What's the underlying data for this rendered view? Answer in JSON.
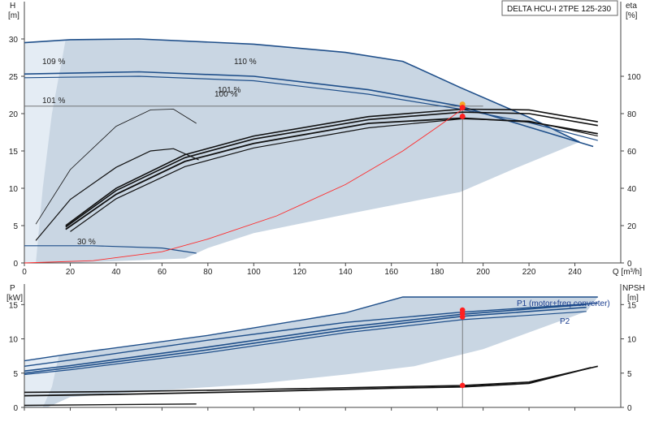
{
  "title": "DELTA HCU-I 2TPE 125-230",
  "colors": {
    "envelope": "#c9d6e3",
    "envelope_light": "#e4ecf4",
    "curve_dark": "#1f4f8a",
    "curve_black": "#111111",
    "eta": "#ff2a2a",
    "point": "#ff2020",
    "point_orange": "#f5a623",
    "grid": "#cfd8e0",
    "axis": "#444444"
  },
  "chart_data": [
    {
      "type": "line",
      "name_id": "top",
      "x_axis": {
        "label": "Q [m³/h]",
        "range": [
          0,
          260
        ],
        "ticks": [
          0,
          20,
          40,
          60,
          80,
          100,
          120,
          140,
          160,
          180,
          200,
          220,
          240
        ]
      },
      "y_axis": {
        "label": "H",
        "unit": "[m]",
        "range": [
          0,
          35
        ],
        "ticks": [
          0,
          5,
          10,
          15,
          20,
          25,
          30
        ]
      },
      "y2_axis": {
        "label": "eta",
        "unit": "[%]",
        "range": [
          0,
          140
        ],
        "ticks": [
          0,
          20,
          40,
          60,
          80,
          100
        ]
      },
      "annotations": [
        "109 %",
        "110 %",
        "101 %",
        "101 %",
        "100 %",
        "30 %"
      ],
      "operating_point": {
        "x": 191,
        "y": 20.8,
        "eta": 78.5
      },
      "hline_y": 21,
      "series": [
        {
          "role": "curve_top",
          "points": [
            [
              0,
              29.5
            ],
            [
              20,
              29.9
            ],
            [
              50,
              30.0
            ],
            [
              100,
              29.3
            ],
            [
              140,
              28.2
            ],
            [
              165,
              27.0
            ],
            [
              190,
              23.5
            ],
            [
              220,
              19.5
            ],
            [
              242,
              16.2
            ]
          ]
        },
        {
          "role": "curve_101a",
          "points": [
            [
              0,
              25.3
            ],
            [
              50,
              25.6
            ],
            [
              100,
              25.0
            ],
            [
              150,
              23.2
            ],
            [
              190,
              21.0
            ],
            [
              220,
              18.2
            ],
            [
              248,
              15.6
            ]
          ]
        },
        {
          "role": "curve_101b",
          "points": [
            [
              0,
              24.8
            ],
            [
              50,
              25.0
            ],
            [
              100,
              24.4
            ],
            [
              150,
              22.6
            ],
            [
              190,
              20.6
            ],
            [
              220,
              18.8
            ],
            [
              250,
              16.4
            ]
          ]
        },
        {
          "role": "curve_30",
          "points": [
            [
              0,
              2.3
            ],
            [
              30,
              2.3
            ],
            [
              60,
              2.0
            ],
            [
              75,
              1.3
            ]
          ]
        },
        {
          "role": "eta_thin",
          "points": [
            [
              5,
              5.2
            ],
            [
              20,
              12.5
            ],
            [
              40,
              18.3
            ],
            [
              55,
              20.5
            ],
            [
              65,
              20.6
            ],
            [
              75,
              18.7
            ]
          ]
        },
        {
          "role": "eta_a",
          "points": [
            [
              5,
              3.0
            ],
            [
              20,
              8.5
            ],
            [
              40,
              12.8
            ],
            [
              55,
              15.0
            ],
            [
              65,
              15.3
            ],
            [
              76,
              13.8
            ]
          ]
        },
        {
          "role": "eta_b1",
          "points": [
            [
              18,
              5.0
            ],
            [
              40,
              10.0
            ],
            [
              70,
              14.5
            ],
            [
              100,
              17.0
            ],
            [
              150,
              19.6
            ],
            [
              191,
              20.6
            ],
            [
              220,
              20.5
            ],
            [
              250,
              18.9
            ]
          ]
        },
        {
          "role": "eta_b2",
          "points": [
            [
              18,
              4.8
            ],
            [
              40,
              9.7
            ],
            [
              70,
              14.1
            ],
            [
              100,
              16.6
            ],
            [
              150,
              19.2
            ],
            [
              191,
              20.2
            ],
            [
              220,
              20.0
            ],
            [
              250,
              18.4
            ]
          ]
        },
        {
          "role": "eta_b3",
          "points": [
            [
              18,
              4.5
            ],
            [
              40,
              9.2
            ],
            [
              70,
              13.6
            ],
            [
              100,
              16.0
            ],
            [
              150,
              18.7
            ],
            [
              191,
              19.4
            ],
            [
              220,
              18.9
            ],
            [
              250,
              17.3
            ]
          ]
        },
        {
          "role": "eta_b4",
          "points": [
            [
              20,
              4.2
            ],
            [
              40,
              8.6
            ],
            [
              70,
              12.9
            ],
            [
              100,
              15.4
            ],
            [
              150,
              18.1
            ],
            [
              191,
              19.3
            ],
            [
              220,
              19.0
            ],
            [
              250,
              17.0
            ]
          ]
        },
        {
          "role": "eta_red",
          "points": [
            [
              0,
              0
            ],
            [
              30,
              0.3
            ],
            [
              60,
              1.5
            ],
            [
              80,
              3.2
            ],
            [
              110,
              6.3
            ],
            [
              140,
              10.5
            ],
            [
              165,
              15.0
            ],
            [
              180,
              18.2
            ],
            [
              191,
              20.6
            ]
          ]
        }
      ]
    },
    {
      "type": "line",
      "name_id": "bottom",
      "x_axis": {
        "range": [
          0,
          260
        ]
      },
      "y_axis": {
        "label": "P",
        "unit": "[kW]",
        "range": [
          0,
          18
        ],
        "ticks": [
          0,
          5,
          10,
          15
        ]
      },
      "y2_axis": {
        "label": "NPSH",
        "unit": "[m]",
        "range": [
          0,
          18
        ],
        "ticks": [
          0,
          5,
          10,
          15
        ]
      },
      "series_labels": [
        "P1 (motor+freq.converter)",
        "P2"
      ],
      "series": [
        {
          "role": "p1_upper",
          "points": [
            [
              0,
              6.8
            ],
            [
              20,
              7.8
            ],
            [
              80,
              10.5
            ],
            [
              140,
              13.8
            ],
            [
              165,
              16.1
            ],
            [
              200,
              16.1
            ],
            [
              250,
              16.1
            ]
          ]
        },
        {
          "role": "p1_mid",
          "points": [
            [
              0,
              6.0
            ],
            [
              20,
              6.9
            ],
            [
              80,
              9.8
            ],
            [
              140,
              12.4
            ],
            [
              191,
              13.9
            ],
            [
              250,
              15.2
            ]
          ]
        },
        {
          "role": "p2_a",
          "points": [
            [
              0,
              5.3
            ],
            [
              20,
              6.1
            ],
            [
              80,
              8.8
            ],
            [
              140,
              11.7
            ],
            [
              191,
              13.6
            ],
            [
              245,
              15.0
            ]
          ]
        },
        {
          "role": "p2_b",
          "points": [
            [
              0,
              5.0
            ],
            [
              20,
              5.8
            ],
            [
              80,
              8.4
            ],
            [
              140,
              11.3
            ],
            [
              191,
              13.3
            ],
            [
              245,
              14.6
            ]
          ]
        },
        {
          "role": "p2_c",
          "points": [
            [
              0,
              4.8
            ],
            [
              20,
              5.5
            ],
            [
              80,
              8.0
            ],
            [
              140,
              10.9
            ],
            [
              191,
              12.8
            ],
            [
              245,
              14.0
            ]
          ]
        },
        {
          "role": "low_a",
          "points": [
            [
              0,
              2.2
            ],
            [
              40,
              2.3
            ],
            [
              100,
              2.6
            ],
            [
              160,
              3.0
            ],
            [
              191,
              3.2
            ],
            [
              220,
              3.7
            ],
            [
              250,
              6.0
            ]
          ]
        },
        {
          "role": "low_b",
          "points": [
            [
              0,
              1.7
            ],
            [
              40,
              1.9
            ],
            [
              100,
              2.3
            ],
            [
              160,
              2.8
            ],
            [
              191,
              3.0
            ],
            [
              220,
              3.5
            ],
            [
              247,
              5.8
            ]
          ]
        },
        {
          "role": "low_c",
          "points": [
            [
              0,
              0.3
            ],
            [
              40,
              0.4
            ],
            [
              75,
              0.5
            ]
          ]
        }
      ],
      "operating_points": [
        [
          191,
          13.2
        ],
        [
          191,
          13.7
        ],
        [
          191,
          14.2
        ],
        [
          191,
          3.2
        ]
      ]
    }
  ]
}
